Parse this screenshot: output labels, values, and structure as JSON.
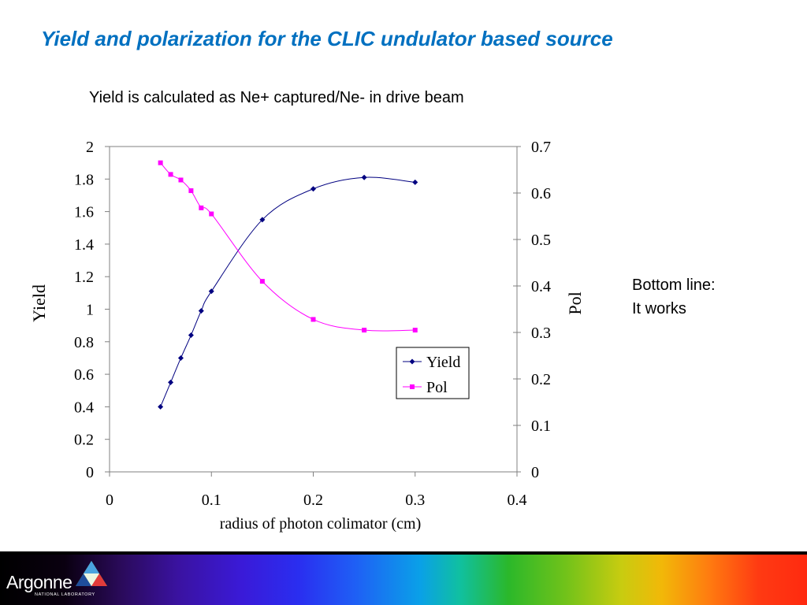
{
  "slide": {
    "title": "Yield and polarization for the CLIC undulator based source",
    "subtitle": "Yield is calculated as Ne+ captured/Ne- in drive beam",
    "note_line1": "Bottom line:",
    "note_line2": "It works"
  },
  "footer": {
    "logo_text": "Argonne",
    "logo_sub": "NATIONAL LABORATORY"
  },
  "colors": {
    "title": "#0070C0",
    "yield_series": "#000080",
    "pol_series": "#FF00FF"
  },
  "chart_data": {
    "type": "line",
    "title": "",
    "xlabel": "radius of photon colimator (cm)",
    "ylabel": "Yield",
    "y2label": "Pol",
    "xlim": [
      0,
      0.4
    ],
    "ylim": [
      0,
      2
    ],
    "y2lim": [
      0,
      0.7
    ],
    "xticks": [
      "0",
      "0.1",
      "0.2",
      "0.3",
      "0.4"
    ],
    "yticks": [
      "0",
      "0.2",
      "0.4",
      "0.6",
      "0.8",
      "1",
      "1.2",
      "1.4",
      "1.6",
      "1.8",
      "2"
    ],
    "y2ticks": [
      "0",
      "0.1",
      "0.2",
      "0.3",
      "0.4",
      "0.5",
      "0.6",
      "0.7"
    ],
    "legend_position": "right",
    "grid": false,
    "series": [
      {
        "name": "Yield",
        "axis": "left",
        "marker": "diamond",
        "color": "#000080",
        "x": [
          0.05,
          0.06,
          0.07,
          0.08,
          0.09,
          0.1,
          0.15,
          0.2,
          0.25,
          0.3
        ],
        "y": [
          0.4,
          0.55,
          0.7,
          0.84,
          0.99,
          1.11,
          1.55,
          1.74,
          1.81,
          1.78
        ]
      },
      {
        "name": "Pol",
        "axis": "right",
        "marker": "square",
        "color": "#FF00FF",
        "x": [
          0.05,
          0.06,
          0.07,
          0.08,
          0.09,
          0.1,
          0.15,
          0.2,
          0.25,
          0.3
        ],
        "y": [
          0.665,
          0.64,
          0.628,
          0.605,
          0.568,
          0.555,
          0.41,
          0.328,
          0.305,
          0.305
        ]
      }
    ]
  }
}
